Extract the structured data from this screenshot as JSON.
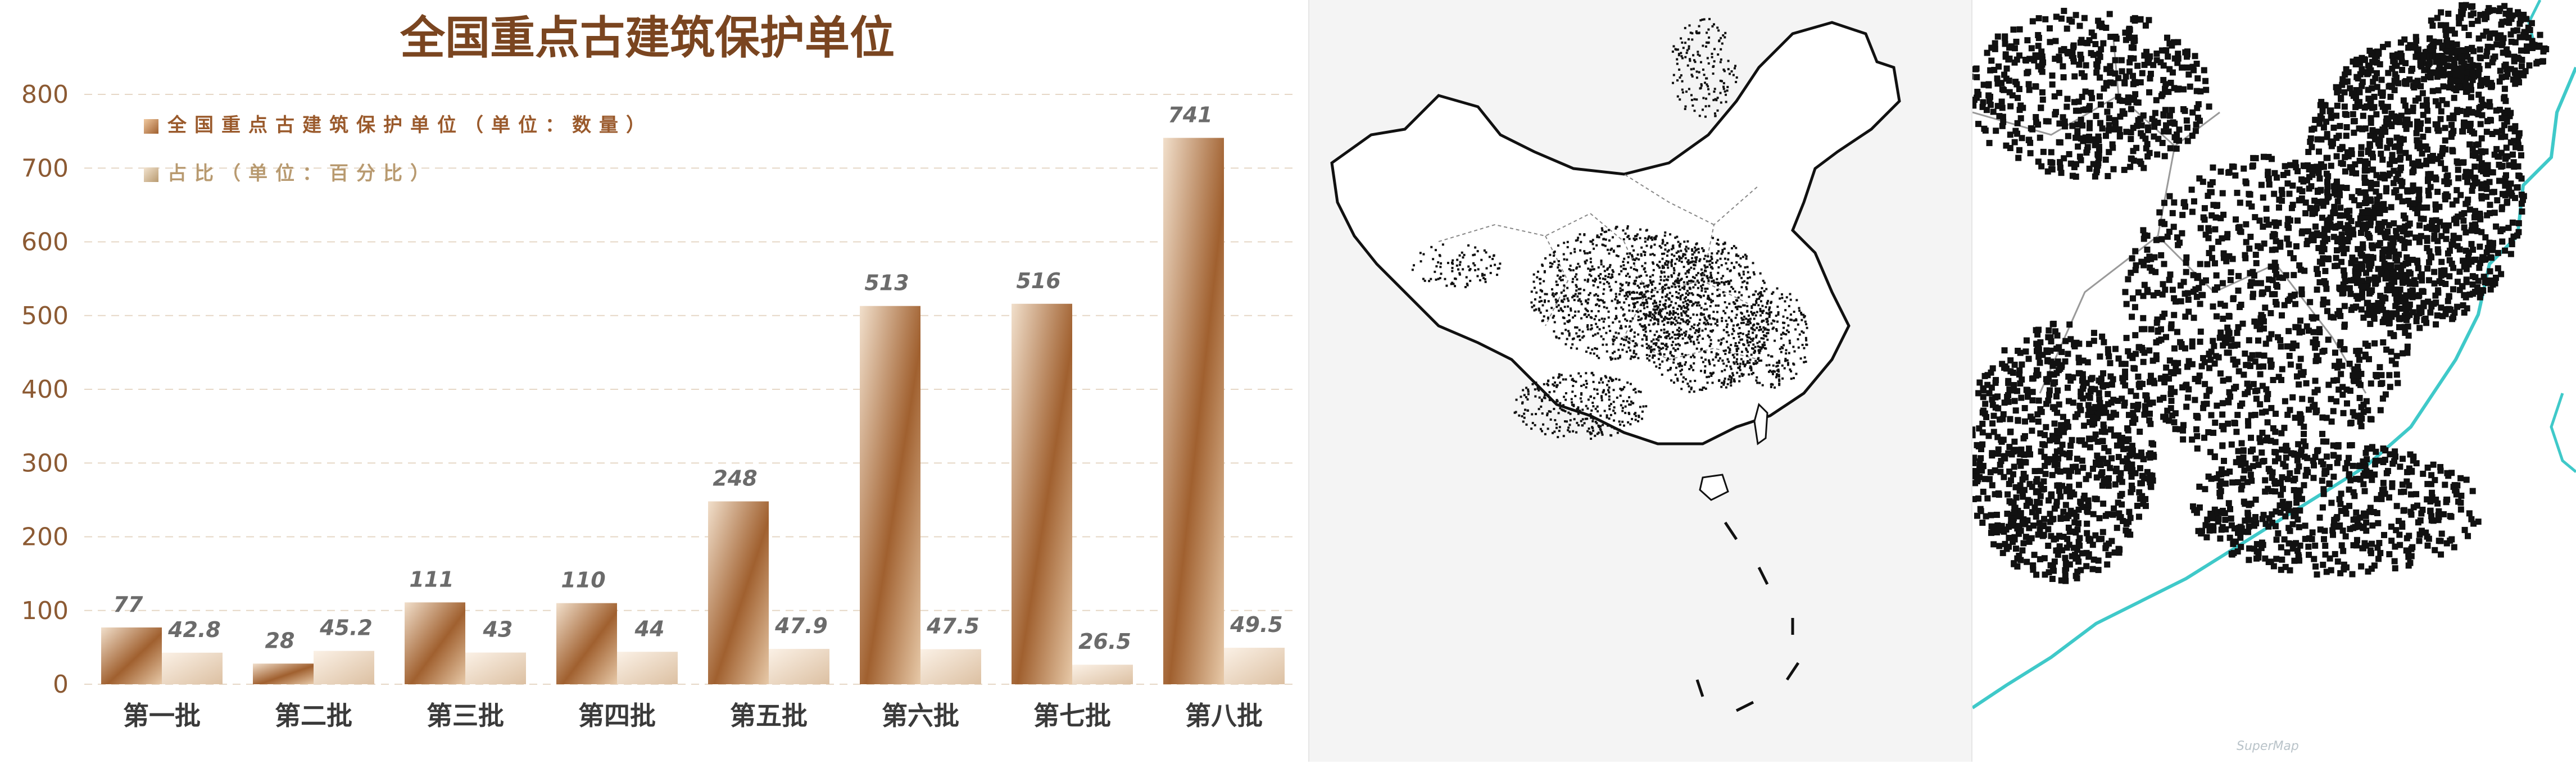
{
  "colors": {
    "title": "#7a4520",
    "axis_text": "#8c5a33",
    "bar_dark": "#9a5a2c",
    "bar_light": "#e9cfb6",
    "pct_bar_dark": "#d9b898",
    "pct_bar_light": "#fbf3ea",
    "grid": "#e6d7c6",
    "value_label": "#6b6b6b",
    "coast": "#3fc9c9"
  },
  "chart_data": {
    "type": "bar",
    "title": "全国重点古建筑保护单位",
    "categories": [
      "第一批",
      "第二批",
      "第三批",
      "第四批",
      "第五批",
      "第六批",
      "第七批",
      "第八批"
    ],
    "series": [
      {
        "name": "全国重点古建筑保护单位（单位：数量）",
        "values": [
          77,
          28,
          111,
          110,
          248,
          513,
          516,
          741
        ]
      },
      {
        "name": "占比（单位：百分比）",
        "values": [
          42.8,
          45.2,
          43,
          44,
          47.9,
          47.5,
          26.5,
          49.5
        ]
      }
    ],
    "value_labels": [
      [
        "77",
        "28",
        "111",
        "110",
        "248",
        "513",
        "516",
        "741"
      ],
      [
        "42.8",
        "45.2",
        "43",
        "44",
        "47.9",
        "47.5",
        "26.5",
        "49.5"
      ]
    ],
    "ylim": [
      0,
      800
    ],
    "yticks": [
      "0",
      "100",
      "200",
      "300",
      "400",
      "500",
      "600",
      "700",
      "800"
    ],
    "grid": true,
    "legend_position": "top-left"
  },
  "map": {
    "watermark": "SuperMap"
  }
}
